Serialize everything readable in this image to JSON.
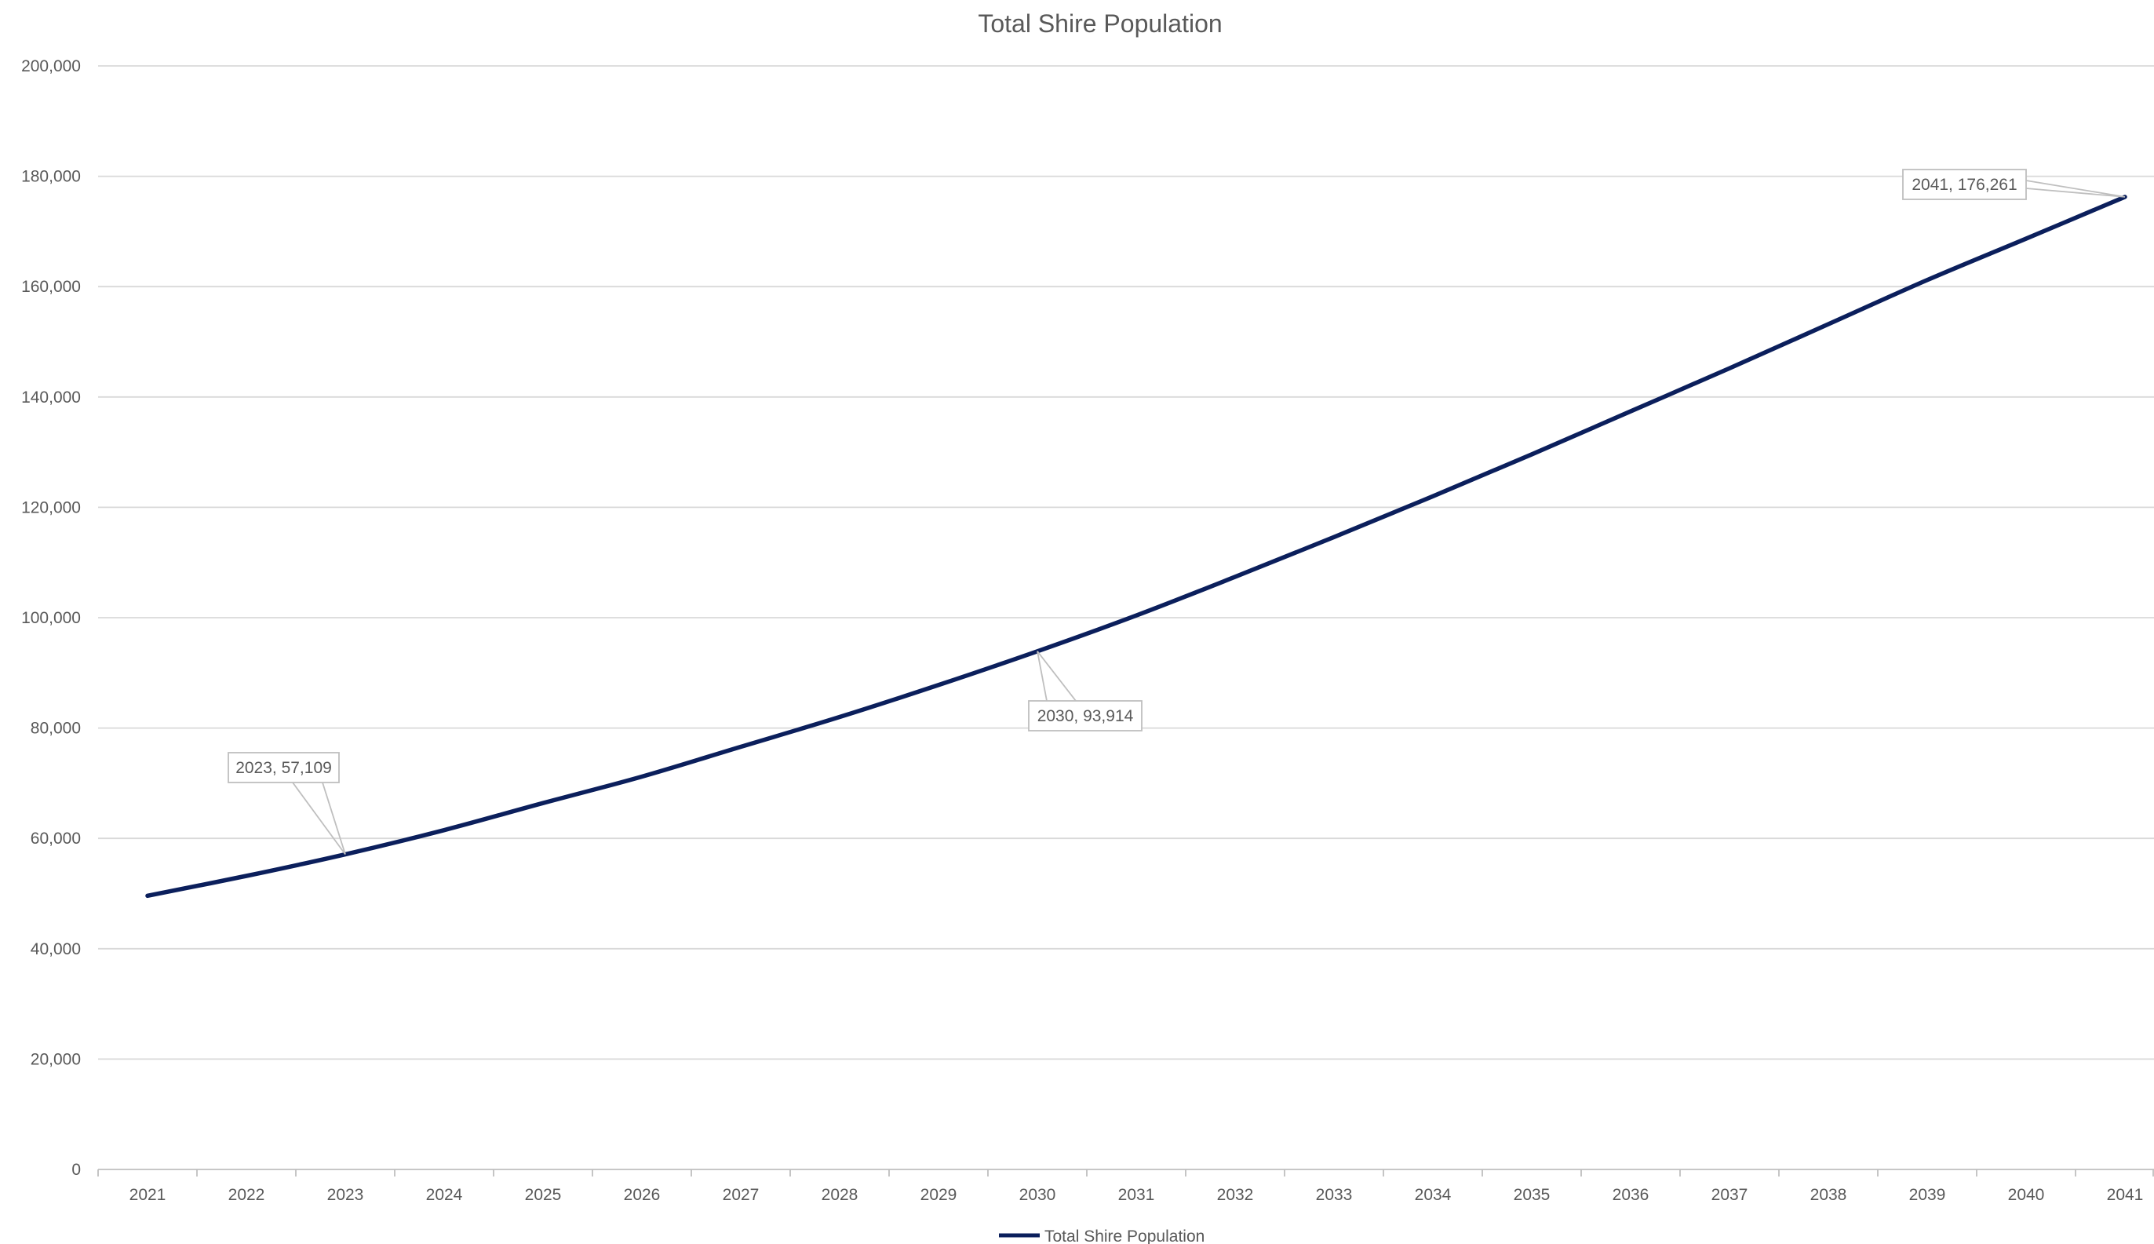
{
  "chart_data": {
    "type": "line",
    "title": "Total Shire Population",
    "xlabel": "",
    "ylabel": "",
    "categories": [
      "2021",
      "2022",
      "2023",
      "2024",
      "2025",
      "2026",
      "2027",
      "2028",
      "2029",
      "2030",
      "2031",
      "2032",
      "2033",
      "2034",
      "2035",
      "2036",
      "2037",
      "2038",
      "2039",
      "2040",
      "2041"
    ],
    "series": [
      {
        "name": "Total Shire Population",
        "color": "#0b1f5c",
        "values": [
          49600,
          53200,
          57109,
          61500,
          66400,
          71200,
          76600,
          82000,
          87800,
          93914,
          100400,
          107400,
          114600,
          122000,
          129600,
          137400,
          145200,
          153200,
          161200,
          168700,
          176261
        ]
      }
    ],
    "ylim": [
      0,
      200000
    ],
    "yticks": [
      0,
      20000,
      40000,
      60000,
      80000,
      100000,
      120000,
      140000,
      160000,
      180000,
      200000
    ],
    "ytick_labels": [
      "0",
      "20,000",
      "40,000",
      "60,000",
      "80,000",
      "100,000",
      "120,000",
      "140,000",
      "160,000",
      "180,000",
      "200,000"
    ],
    "grid": true,
    "legend": "bottom-center",
    "annotations": [
      {
        "category": "2023",
        "value": 57109,
        "text": "2023, 57,109"
      },
      {
        "category": "2030",
        "value": 93914,
        "text": "2030, 93,914"
      },
      {
        "category": "2041",
        "value": 176261,
        "text": "2041, 176,261"
      }
    ]
  }
}
